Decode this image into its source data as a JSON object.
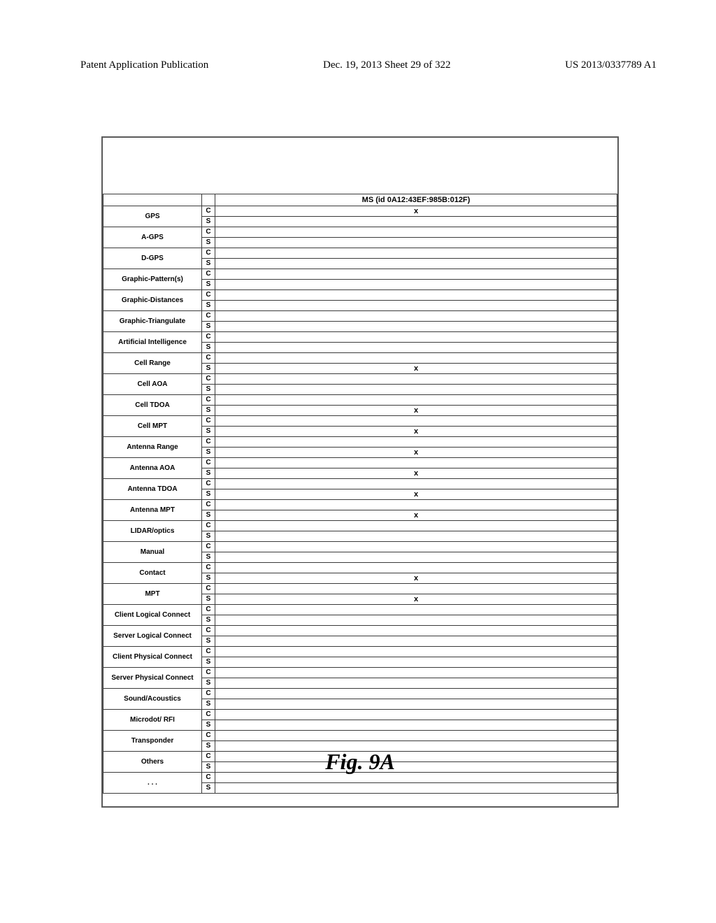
{
  "header": {
    "left": "Patent Application Publication",
    "center": "Dec. 19, 2013  Sheet 29 of 322",
    "right": "US 2013/0337789 A1"
  },
  "table": {
    "headerCell": "MS (id 0A12:43EF:985B:012F)",
    "rows": [
      {
        "label": "GPS",
        "c": "x",
        "s": ""
      },
      {
        "label": "A-GPS",
        "c": "",
        "s": ""
      },
      {
        "label": "D-GPS",
        "c": "",
        "s": ""
      },
      {
        "label": "Graphic-Pattern(s)",
        "c": "",
        "s": ""
      },
      {
        "label": "Graphic-Distances",
        "c": "",
        "s": ""
      },
      {
        "label": "Graphic-Triangulate",
        "c": "",
        "s": ""
      },
      {
        "label": "Artificial Intelligence",
        "c": "",
        "s": ""
      },
      {
        "label": "Cell Range",
        "c": "",
        "s": "x"
      },
      {
        "label": "Cell AOA",
        "c": "",
        "s": ""
      },
      {
        "label": "Cell TDOA",
        "c": "",
        "s": "x"
      },
      {
        "label": "Cell MPT",
        "c": "",
        "s": "x"
      },
      {
        "label": "Antenna Range",
        "c": "",
        "s": "x"
      },
      {
        "label": "Antenna AOA",
        "c": "",
        "s": "x"
      },
      {
        "label": "Antenna TDOA",
        "c": "",
        "s": "x"
      },
      {
        "label": "Antenna MPT",
        "c": "",
        "s": "x"
      },
      {
        "label": "LIDAR/optics",
        "c": "",
        "s": ""
      },
      {
        "label": "Manual",
        "c": "",
        "s": ""
      },
      {
        "label": "Contact",
        "c": "",
        "s": "x"
      },
      {
        "label": "MPT",
        "c": "",
        "s": "x"
      },
      {
        "label": "Client Logical Connect",
        "c": "",
        "s": ""
      },
      {
        "label": "Server Logical Connect",
        "c": "",
        "s": ""
      },
      {
        "label": "Client Physical Connect",
        "c": "",
        "s": ""
      },
      {
        "label": "Server Physical Connect",
        "c": "",
        "s": ""
      },
      {
        "label": "Sound/Acoustics",
        "c": "",
        "s": ""
      },
      {
        "label": "Microdot/ RFI",
        "c": "",
        "s": ""
      },
      {
        "label": "Transponder",
        "c": "",
        "s": ""
      },
      {
        "label": "Others",
        "c": "",
        "s": ""
      },
      {
        "label": ". . .",
        "c": "",
        "s": ""
      }
    ],
    "csLabels": {
      "c": "C",
      "s": "S"
    }
  },
  "caption": "Fig. 9A"
}
